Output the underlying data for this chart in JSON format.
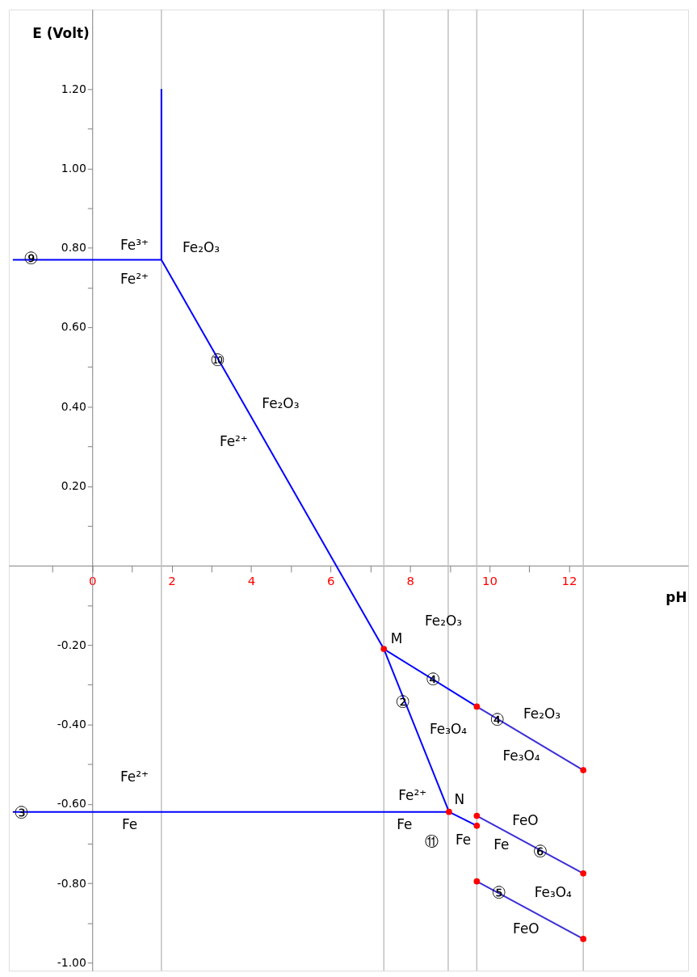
{
  "chart_data": {
    "type": "line",
    "xlabel": "pH",
    "ylabel": "E (Volt)",
    "xlim": [
      -2.1,
      15.0
    ],
    "ylim": [
      -1.02,
      1.4
    ],
    "xticks": [
      {
        "value": -1,
        "label": null
      },
      0,
      {
        "value": 1,
        "label": null
      },
      2,
      {
        "value": 3,
        "label": null
      },
      4,
      {
        "value": 5,
        "label": null
      },
      6,
      {
        "value": 7,
        "label": null
      },
      8,
      {
        "value": 9,
        "label": null
      },
      10,
      {
        "value": 11,
        "label": null
      },
      12
    ],
    "yticks": [
      {
        "value": -1.0,
        "label": "-1.00"
      },
      {
        "value": -0.9,
        "label": null
      },
      {
        "value": -0.8,
        "label": "-0.80"
      },
      {
        "value": -0.7,
        "label": null
      },
      {
        "value": -0.6,
        "label": "-0.60"
      },
      {
        "value": -0.5,
        "label": null
      },
      {
        "value": -0.4,
        "label": "-0.40"
      },
      {
        "value": -0.3,
        "label": null
      },
      {
        "value": -0.2,
        "label": "-0.20"
      },
      {
        "value": -0.1,
        "label": null
      },
      {
        "value": 0.1,
        "label": null
      },
      {
        "value": 0.2,
        "label": "0.20"
      },
      {
        "value": 0.3,
        "label": null
      },
      {
        "value": 0.4,
        "label": "0.40"
      },
      {
        "value": 0.5,
        "label": null
      },
      {
        "value": 0.6,
        "label": "0.60"
      },
      {
        "value": 0.7,
        "label": null
      },
      {
        "value": 0.8,
        "label": "0.80"
      },
      {
        "value": 0.9,
        "label": null
      },
      {
        "value": 1.0,
        "label": "1.00"
      },
      {
        "value": 1.1,
        "label": null
      },
      {
        "value": 1.2,
        "label": "1.20"
      }
    ],
    "grid": false,
    "line_style": "solid",
    "series": [
      {
        "color": "#0000ff",
        "x": [
          -2.0,
          1.74
        ],
        "values": [
          0.77,
          0.77
        ]
      },
      {
        "color": "#0000ff",
        "x": [
          1.74,
          1.74
        ],
        "values": [
          0.77,
          1.2
        ]
      },
      {
        "color": "#0000ff",
        "x": [
          1.74,
          7.34
        ],
        "values": [
          0.77,
          -0.21
        ]
      },
      {
        "color": "#0000ff",
        "x": [
          7.34,
          9.68
        ],
        "values": [
          -0.21,
          -0.355
        ]
      },
      {
        "color": "#3a2fd8",
        "x": [
          9.68,
          12.36
        ],
        "values": [
          -0.355,
          -0.515
        ]
      },
      {
        "color": "#0000ff",
        "x": [
          7.34,
          8.98
        ],
        "values": [
          -0.21,
          -0.62
        ]
      },
      {
        "color": "#0000ff",
        "x": [
          -2.0,
          8.98
        ],
        "values": [
          -0.62,
          -0.62
        ]
      },
      {
        "color": "#0000ff",
        "x": [
          8.98,
          9.68
        ],
        "values": [
          -0.62,
          -0.655
        ]
      },
      {
        "color": "#3a2fd8",
        "x": [
          9.68,
          12.36
        ],
        "values": [
          -0.63,
          -0.775
        ]
      },
      {
        "color": "#3a2fd8",
        "x": [
          9.68,
          12.36
        ],
        "values": [
          -0.795,
          -0.94
        ]
      },
      {
        "type": "scatter",
        "marker": "circle",
        "color": "#ff0000",
        "x": [
          7.34,
          8.98,
          9.68,
          12.36,
          9.68,
          9.68,
          12.36,
          9.68,
          12.36
        ],
        "values": [
          -0.21,
          -0.62,
          -0.355,
          -0.515,
          -0.63,
          -0.655,
          -0.775,
          -0.795,
          -0.94
        ]
      }
    ],
    "ref_lines": [
      {
        "axis": "x",
        "value": 1.74,
        "color": "#c0c0c0"
      },
      {
        "axis": "x",
        "value": 7.34,
        "color": "#c0c0c0"
      },
      {
        "axis": "x",
        "value": 8.96,
        "color": "#c0c0c0"
      },
      {
        "axis": "x",
        "value": 9.68,
        "color": "#c0c0c0"
      },
      {
        "axis": "x",
        "value": 12.36,
        "color": "#c0c0c0"
      }
    ],
    "annotations": [
      {
        "text": "⑨",
        "x": -1.54,
        "y": 0.77
      },
      "Fe³⁺",
      "Fe²⁺",
      "Fe₂O₃",
      {
        "text": "⑩",
        "x": 3.16,
        "y": 0.514
      },
      "Fe₂O₃",
      "Fe²⁺",
      "Fe₂O₃",
      "M",
      {
        "text": "④",
        "x": 8.58,
        "y": -0.29
      },
      {
        "text": "②",
        "x": 7.82,
        "y": -0.346
      },
      {
        "text": "④",
        "x": 10.2,
        "y": -0.39
      },
      "Fe₂O₃",
      "Fe₃O₄",
      "Fe₃O₄",
      "Fe²⁺",
      "N",
      "Fe",
      "⑪",
      "Fe",
      "FeO",
      "Fe",
      {
        "text": "⑥",
        "x": 11.28,
        "y": -0.722
      },
      {
        "text": "⑤",
        "x": 10.24,
        "y": -0.826
      },
      "Fe₃O₄",
      "FeO",
      {
        "text": "③",
        "x": -1.78,
        "y": -0.624
      },
      "Fe²⁺",
      "Fe"
    ]
  }
}
